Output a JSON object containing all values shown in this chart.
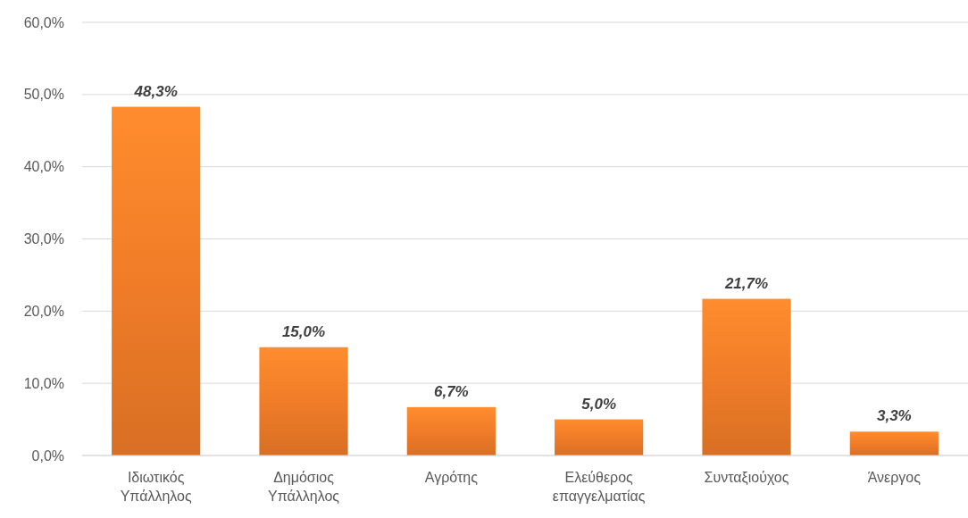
{
  "chart_data": {
    "type": "bar",
    "categories": [
      "Ιδιωτικός Υπάλληλος",
      "Δημόσιος Υπάλληλος",
      "Αγρότης",
      "Ελεύθερος επαγγελματίας",
      "Συνταξιούχος",
      "Άνεργος"
    ],
    "values": [
      48.3,
      15.0,
      6.7,
      5.0,
      21.7,
      3.3
    ],
    "value_labels": [
      "48,3%",
      "15,0%",
      "6,7%",
      "5,0%",
      "21,7%",
      "3,3%"
    ],
    "color": "#f07c28",
    "ylim": [
      0,
      60
    ],
    "yticks": [
      {
        "value": 0,
        "label": "0,0%"
      },
      {
        "value": 10,
        "label": "10,0%"
      },
      {
        "value": 20,
        "label": "20,0%"
      },
      {
        "value": 30,
        "label": "30,0%"
      },
      {
        "value": 40,
        "label": "40,0%"
      },
      {
        "value": 50,
        "label": "50,0%"
      },
      {
        "value": 60,
        "label": "60,0%"
      }
    ],
    "grid": "y"
  }
}
